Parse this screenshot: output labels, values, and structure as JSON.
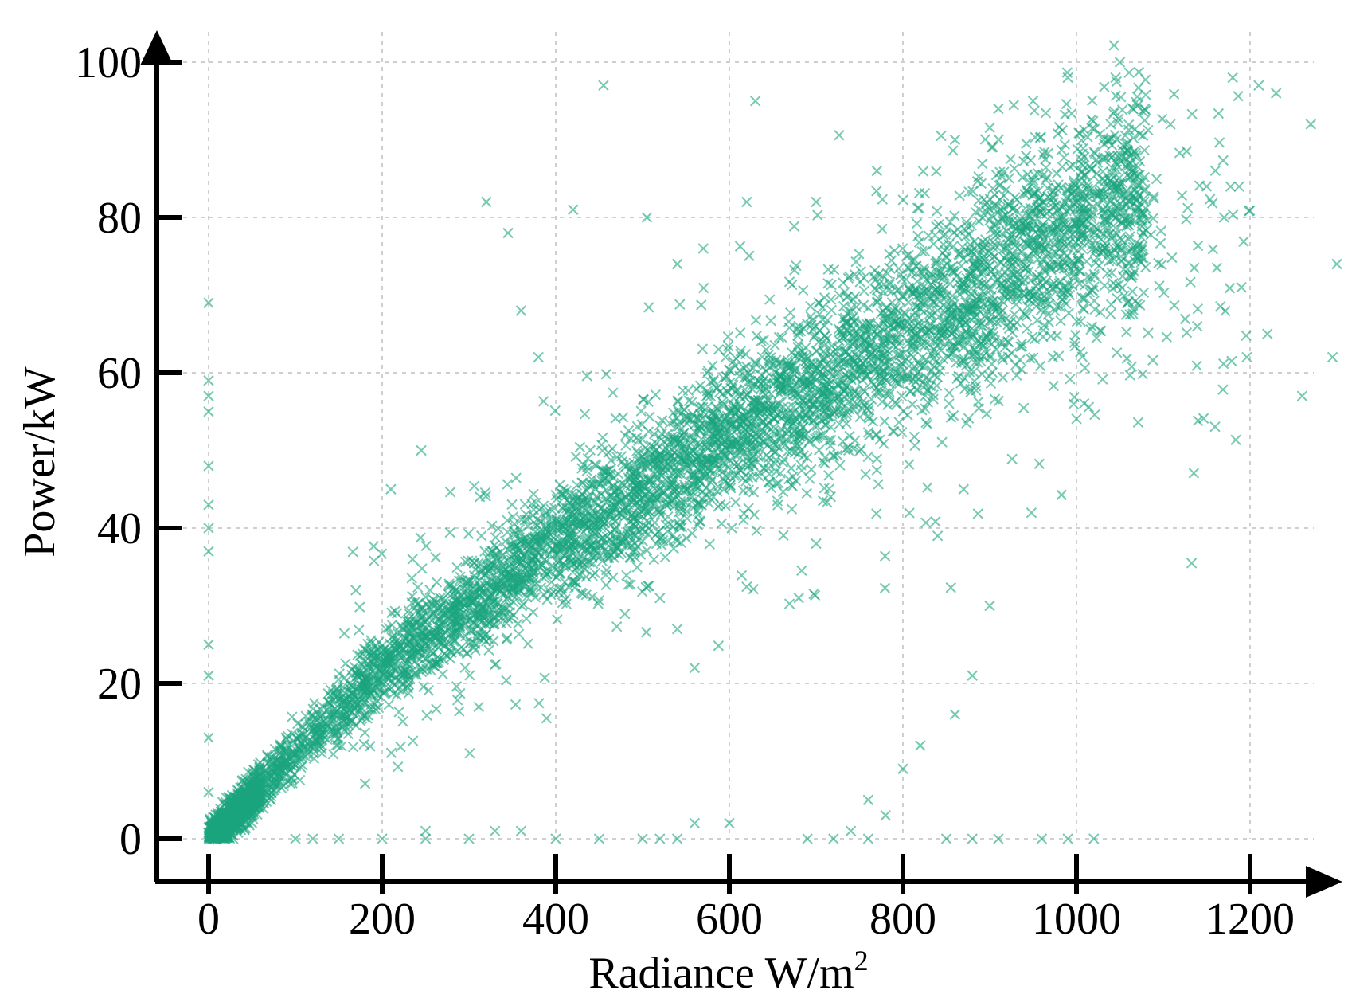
{
  "chart_data": {
    "type": "scatter",
    "title": "",
    "xlabel": "Radiance W/m",
    "xlabel_superscript": "2",
    "ylabel": "Power/kW",
    "xlim": [
      -45,
      1420
    ],
    "ylim": [
      -4,
      102
    ],
    "xticks": [
      0,
      200,
      400,
      600,
      800,
      1000,
      1200
    ],
    "yticks": [
      0,
      20,
      40,
      60,
      80,
      100
    ],
    "xtick_labels": [
      "0",
      "200",
      "400",
      "600",
      "800",
      "1000",
      "1200"
    ],
    "ytick_labels": [
      "0",
      "20",
      "40",
      "60",
      "80",
      "100"
    ],
    "grid": true,
    "legend": "none",
    "marker": "x",
    "color": "#1aa57e",
    "trend_description": {
      "main_band_anchor_points": [
        [
          0,
          0
        ],
        [
          200,
          22
        ],
        [
          400,
          38
        ],
        [
          600,
          52
        ],
        [
          800,
          65
        ],
        [
          1000,
          79
        ],
        [
          1050,
          82
        ]
      ],
      "band_upper_offset_kW": 7,
      "band_lower_offset_kW": 7
    },
    "outliers": [
      [
        0,
        69
      ],
      [
        0,
        59
      ],
      [
        0,
        57
      ],
      [
        0,
        55
      ],
      [
        0,
        48
      ],
      [
        0,
        43
      ],
      [
        0,
        40
      ],
      [
        0,
        37
      ],
      [
        0,
        25
      ],
      [
        0,
        21
      ],
      [
        0,
        13
      ],
      [
        0,
        6
      ],
      [
        235,
        36
      ],
      [
        245,
        50
      ],
      [
        210,
        45
      ],
      [
        320,
        82
      ],
      [
        345,
        78
      ],
      [
        360,
        68
      ],
      [
        380,
        62
      ],
      [
        420,
        81
      ],
      [
        455,
        97
      ],
      [
        505,
        80
      ],
      [
        540,
        74
      ],
      [
        570,
        76
      ],
      [
        620,
        82
      ],
      [
        630,
        95
      ],
      [
        700,
        82
      ],
      [
        770,
        86
      ],
      [
        860,
        90
      ],
      [
        910,
        94
      ],
      [
        950,
        95
      ],
      [
        990,
        98
      ],
      [
        1050,
        100
      ],
      [
        1045,
        98
      ],
      [
        1180,
        98
      ],
      [
        1210,
        97
      ],
      [
        1230,
        96
      ],
      [
        1270,
        92
      ],
      [
        1300,
        74
      ],
      [
        1295,
        62
      ],
      [
        1260,
        57
      ],
      [
        1170,
        80
      ],
      [
        1150,
        84
      ],
      [
        1190,
        71
      ],
      [
        1220,
        65
      ],
      [
        560,
        22
      ],
      [
        540,
        27
      ],
      [
        520,
        31
      ],
      [
        680,
        31
      ],
      [
        700,
        38
      ],
      [
        800,
        9
      ],
      [
        820,
        12
      ],
      [
        860,
        16
      ],
      [
        880,
        21
      ],
      [
        900,
        30
      ],
      [
        840,
        39
      ],
      [
        870,
        45
      ],
      [
        780,
        3
      ],
      [
        760,
        5
      ],
      [
        740,
        1
      ],
      [
        100,
        0
      ],
      [
        120,
        0
      ],
      [
        150,
        0
      ],
      [
        200,
        0
      ],
      [
        250,
        0
      ],
      [
        300,
        0
      ],
      [
        400,
        0
      ],
      [
        450,
        0
      ],
      [
        500,
        0
      ],
      [
        520,
        0
      ],
      [
        540,
        0
      ],
      [
        690,
        0
      ],
      [
        720,
        0
      ],
      [
        760,
        0
      ],
      [
        850,
        0
      ],
      [
        880,
        0
      ],
      [
        910,
        0
      ],
      [
        960,
        0
      ],
      [
        990,
        0
      ],
      [
        1020,
        0
      ],
      [
        560,
        2
      ],
      [
        600,
        2
      ],
      [
        360,
        1
      ],
      [
        330,
        1
      ],
      [
        250,
        1
      ]
    ]
  }
}
